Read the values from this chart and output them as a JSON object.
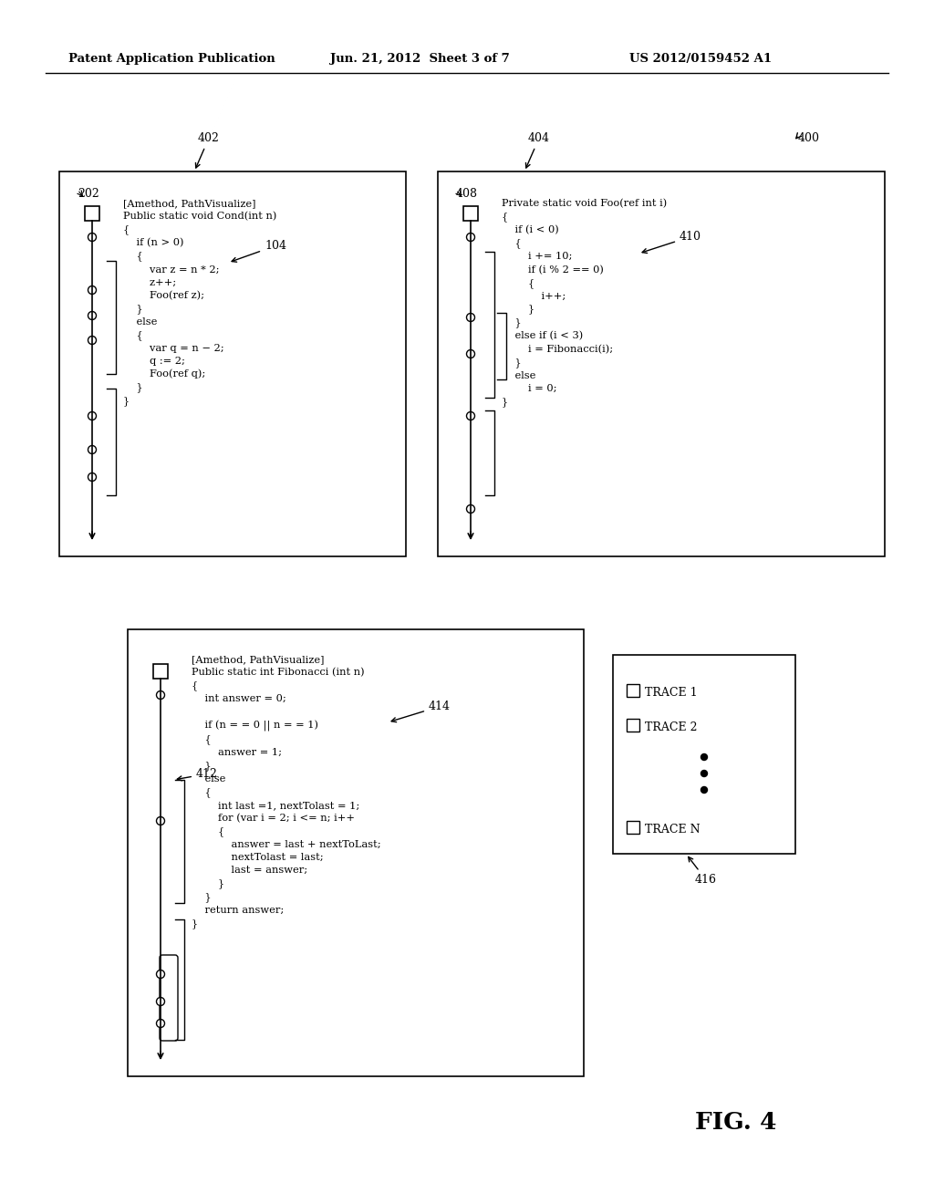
{
  "bg_color": "#ffffff",
  "header_left": "Patent Application Publication",
  "header_mid": "Jun. 21, 2012  Sheet 3 of 7",
  "header_right": "US 2012/0159452 A1",
  "fig_label": "FIG. 4"
}
